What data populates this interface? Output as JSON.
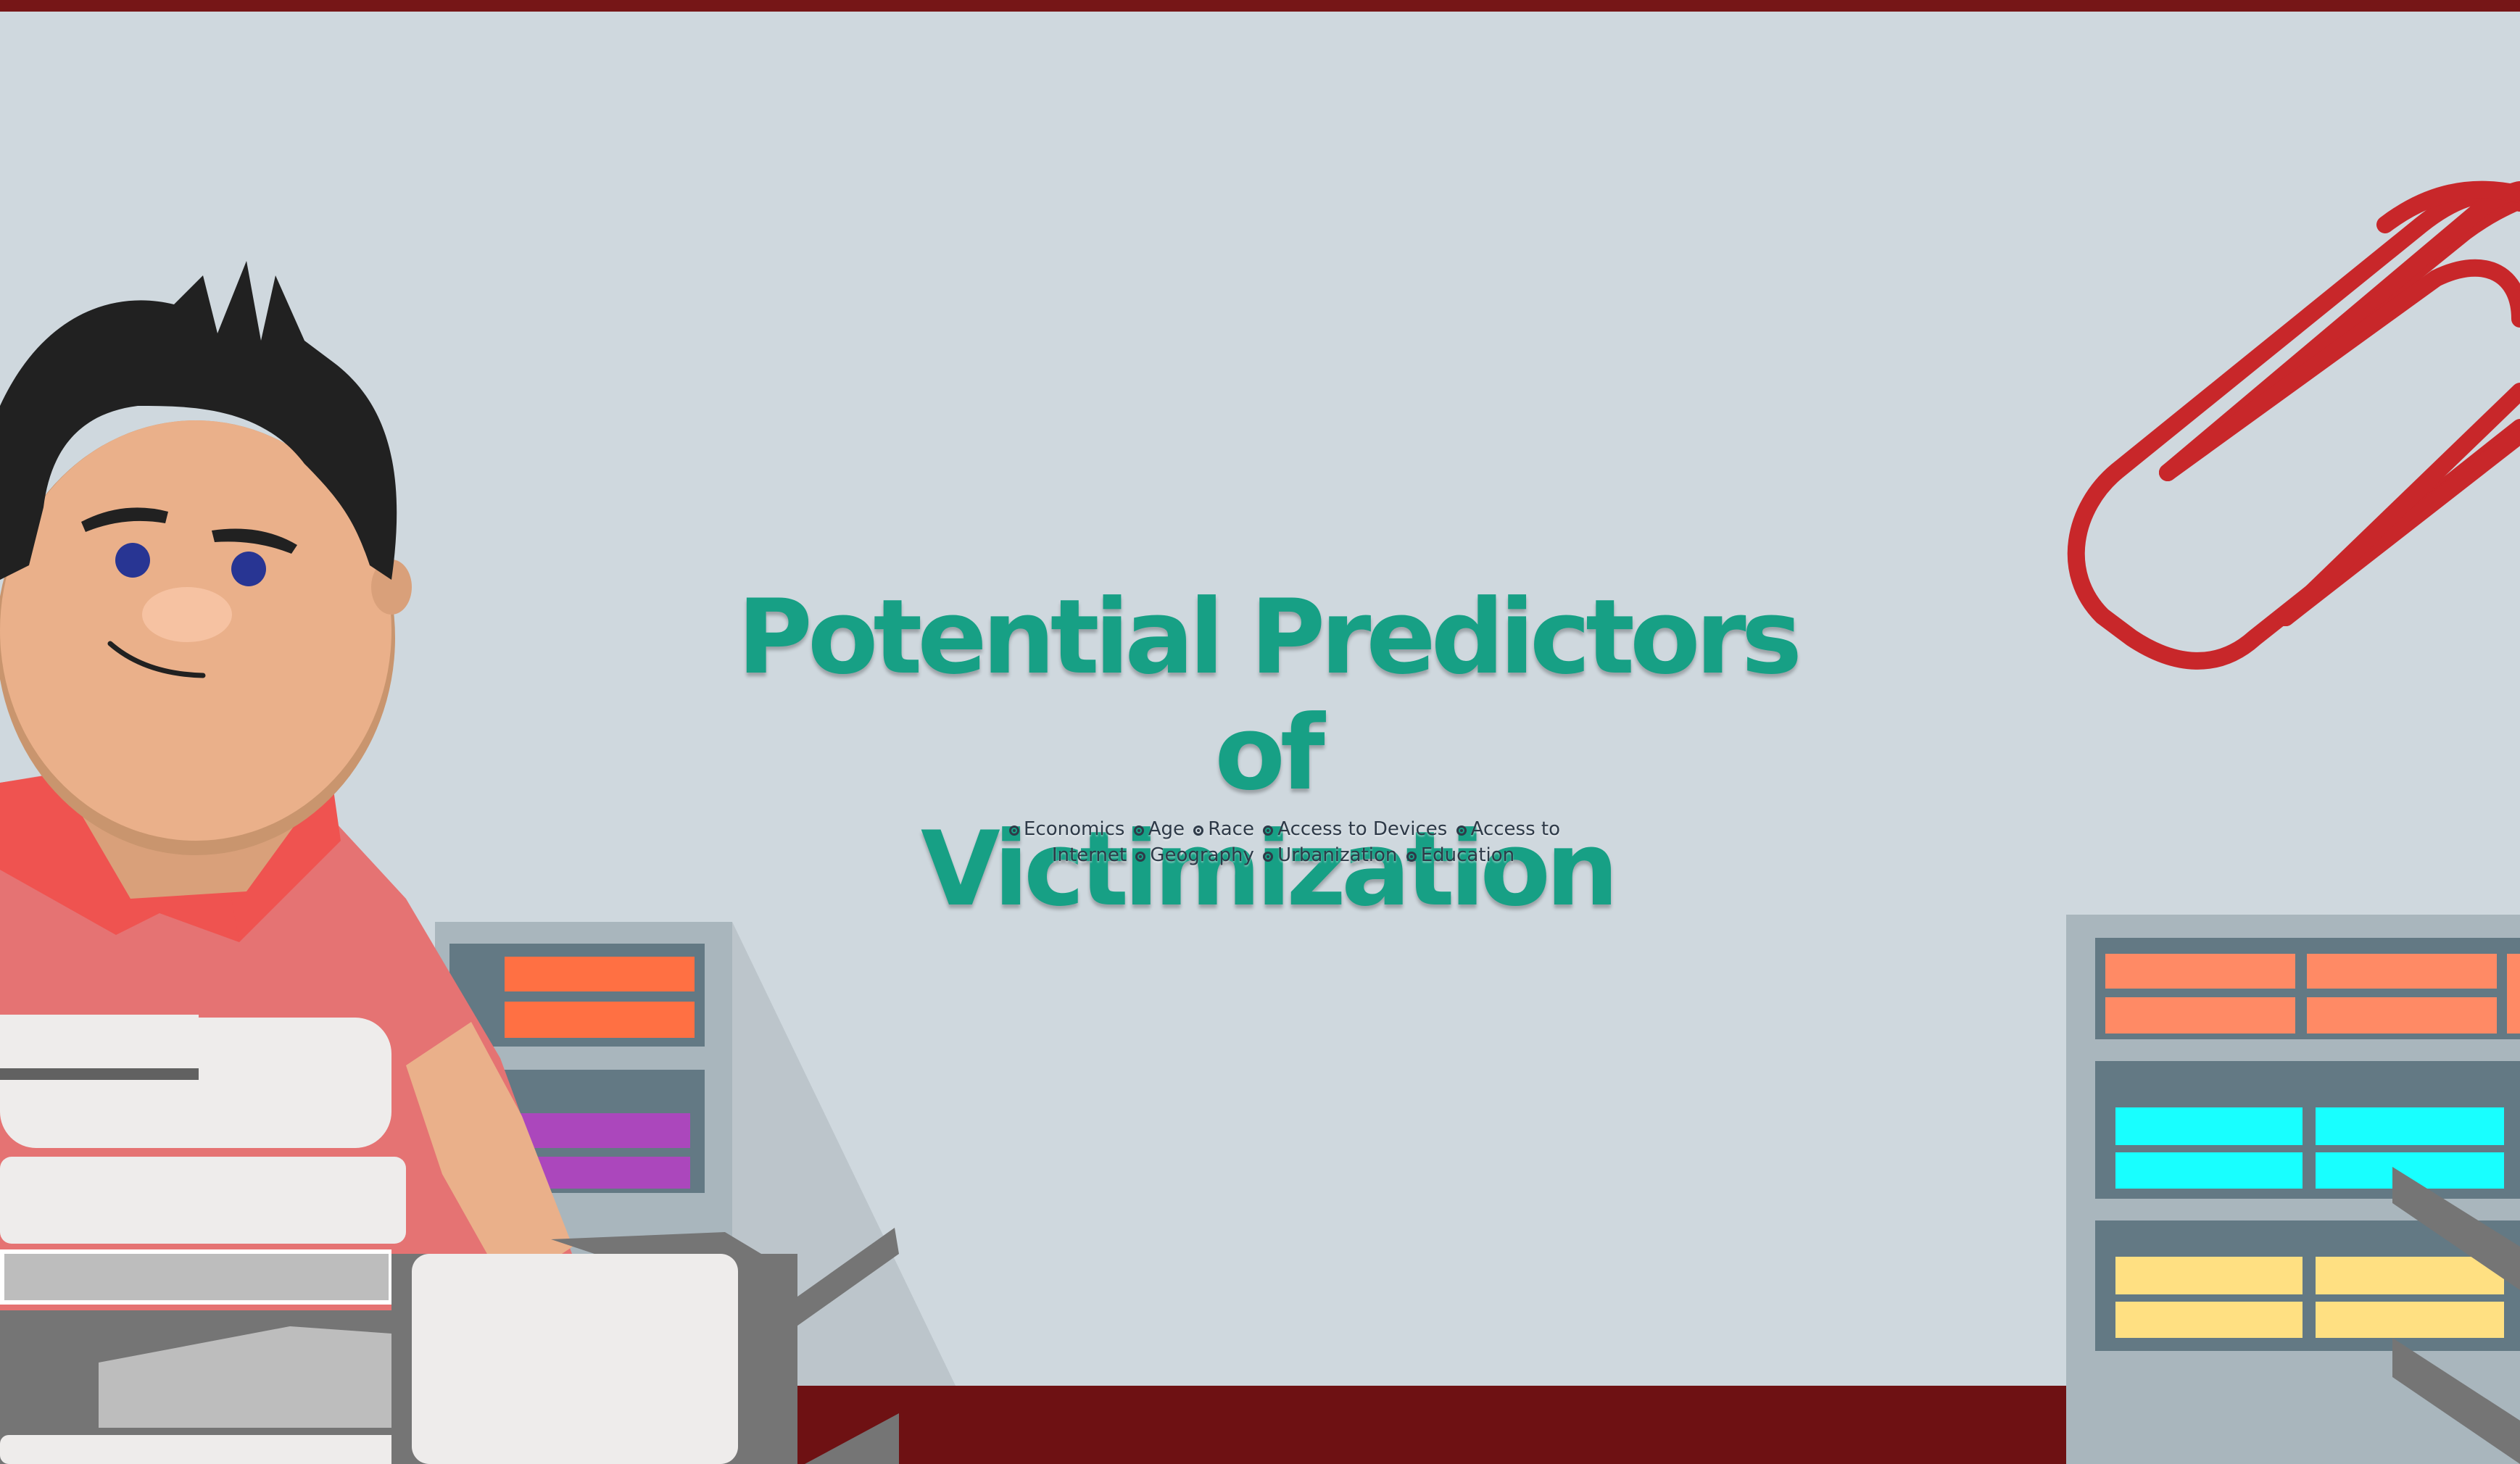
{
  "title": {
    "line1": "Potential Predictors of",
    "line2": "Victimization"
  },
  "predictors": [
    "Economics",
    "Age",
    "Race",
    "Access to Devices",
    "Access to Internet",
    "Geography",
    "Urbanization",
    "Education"
  ],
  "colors": {
    "background": "#cfd8de",
    "title": "#17a085",
    "accent_red": "#761617",
    "paperclip": "#c8272a"
  }
}
